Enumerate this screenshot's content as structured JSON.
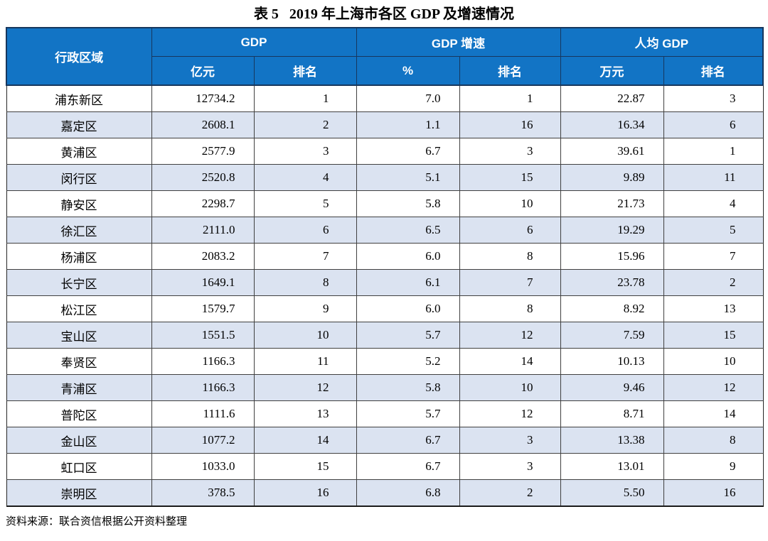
{
  "page": {
    "title": "表 5   2019 年上海市各区 GDP 及增速情况",
    "source_note": "资料来源：联合资信根据公开资料整理"
  },
  "colors": {
    "header_bg": "#1274c5",
    "header_border": "#17375e",
    "row_stripe": "#dbe3f1",
    "body_border": "#404040"
  },
  "table": {
    "headers": {
      "district": "行政区域",
      "gdp_group": "GDP",
      "growth_group": "GDP 增速",
      "per_capita_group": "人均 GDP",
      "gdp_unit": "亿元",
      "gdp_rank": "排名",
      "growth_unit": "%",
      "growth_rank": "排名",
      "per_capita_unit": "万元",
      "per_capita_rank": "排名"
    },
    "rows": [
      {
        "district": "浦东新区",
        "gdp": "12734.2",
        "gdp_rank": "1",
        "growth": "7.0",
        "growth_rank": "1",
        "per_capita": "22.87",
        "per_capita_rank": "3"
      },
      {
        "district": "嘉定区",
        "gdp": "2608.1",
        "gdp_rank": "2",
        "growth": "1.1",
        "growth_rank": "16",
        "per_capita": "16.34",
        "per_capita_rank": "6"
      },
      {
        "district": "黄浦区",
        "gdp": "2577.9",
        "gdp_rank": "3",
        "growth": "6.7",
        "growth_rank": "3",
        "per_capita": "39.61",
        "per_capita_rank": "1"
      },
      {
        "district": "闵行区",
        "gdp": "2520.8",
        "gdp_rank": "4",
        "growth": "5.1",
        "growth_rank": "15",
        "per_capita": "9.89",
        "per_capita_rank": "11"
      },
      {
        "district": "静安区",
        "gdp": "2298.7",
        "gdp_rank": "5",
        "growth": "5.8",
        "growth_rank": "10",
        "per_capita": "21.73",
        "per_capita_rank": "4"
      },
      {
        "district": "徐汇区",
        "gdp": "2111.0",
        "gdp_rank": "6",
        "growth": "6.5",
        "growth_rank": "6",
        "per_capita": "19.29",
        "per_capita_rank": "5"
      },
      {
        "district": "杨浦区",
        "gdp": "2083.2",
        "gdp_rank": "7",
        "growth": "6.0",
        "growth_rank": "8",
        "per_capita": "15.96",
        "per_capita_rank": "7"
      },
      {
        "district": "长宁区",
        "gdp": "1649.1",
        "gdp_rank": "8",
        "growth": "6.1",
        "growth_rank": "7",
        "per_capita": "23.78",
        "per_capita_rank": "2"
      },
      {
        "district": "松江区",
        "gdp": "1579.7",
        "gdp_rank": "9",
        "growth": "6.0",
        "growth_rank": "8",
        "per_capita": "8.92",
        "per_capita_rank": "13"
      },
      {
        "district": "宝山区",
        "gdp": "1551.5",
        "gdp_rank": "10",
        "growth": "5.7",
        "growth_rank": "12",
        "per_capita": "7.59",
        "per_capita_rank": "15"
      },
      {
        "district": "奉贤区",
        "gdp": "1166.3",
        "gdp_rank": "11",
        "growth": "5.2",
        "growth_rank": "14",
        "per_capita": "10.13",
        "per_capita_rank": "10"
      },
      {
        "district": "青浦区",
        "gdp": "1166.3",
        "gdp_rank": "12",
        "growth": "5.8",
        "growth_rank": "10",
        "per_capita": "9.46",
        "per_capita_rank": "12"
      },
      {
        "district": "普陀区",
        "gdp": "1111.6",
        "gdp_rank": "13",
        "growth": "5.7",
        "growth_rank": "12",
        "per_capita": "8.71",
        "per_capita_rank": "14"
      },
      {
        "district": "金山区",
        "gdp": "1077.2",
        "gdp_rank": "14",
        "growth": "6.7",
        "growth_rank": "3",
        "per_capita": "13.38",
        "per_capita_rank": "8"
      },
      {
        "district": "虹口区",
        "gdp": "1033.0",
        "gdp_rank": "15",
        "growth": "6.7",
        "growth_rank": "3",
        "per_capita": "13.01",
        "per_capita_rank": "9"
      },
      {
        "district": "崇明区",
        "gdp": "378.5",
        "gdp_rank": "16",
        "growth": "6.8",
        "growth_rank": "2",
        "per_capita": "5.50",
        "per_capita_rank": "16"
      }
    ]
  }
}
